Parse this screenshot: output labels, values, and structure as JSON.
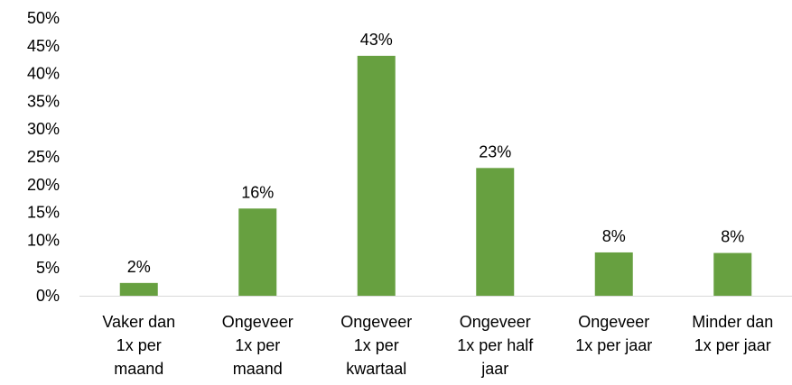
{
  "chart_data": {
    "type": "bar",
    "title": "",
    "xlabel": "",
    "ylabel": "",
    "categories": [
      [
        "Vaker dan",
        "1x per",
        "maand"
      ],
      [
        "Ongeveer",
        "1x per",
        "maand"
      ],
      [
        "Ongeveer",
        "1x per",
        "kwartaal"
      ],
      [
        "Ongeveer",
        "1x per half",
        "jaar"
      ],
      [
        "Ongeveer",
        "1x per jaar"
      ],
      [
        "Minder dan",
        "1x per jaar"
      ]
    ],
    "values": [
      2,
      16,
      43,
      23,
      8,
      8
    ],
    "value_labels": [
      "2%",
      "16%",
      "43%",
      "23%",
      "8%",
      "8%"
    ],
    "bar_values": [
      2.3,
      15.7,
      43.2,
      23.0,
      7.8,
      7.7
    ],
    "ylim": [
      0,
      50
    ],
    "yticks": [
      0,
      5,
      10,
      15,
      20,
      25,
      30,
      35,
      40,
      45,
      50
    ],
    "ytick_labels": [
      "0%",
      "5%",
      "10%",
      "15%",
      "20%",
      "25%",
      "30%",
      "35%",
      "40%",
      "45%",
      "50%"
    ],
    "grid": false,
    "legend": "none",
    "colors": {
      "bar": "#67a040",
      "axis": "#d9d9d9"
    }
  }
}
